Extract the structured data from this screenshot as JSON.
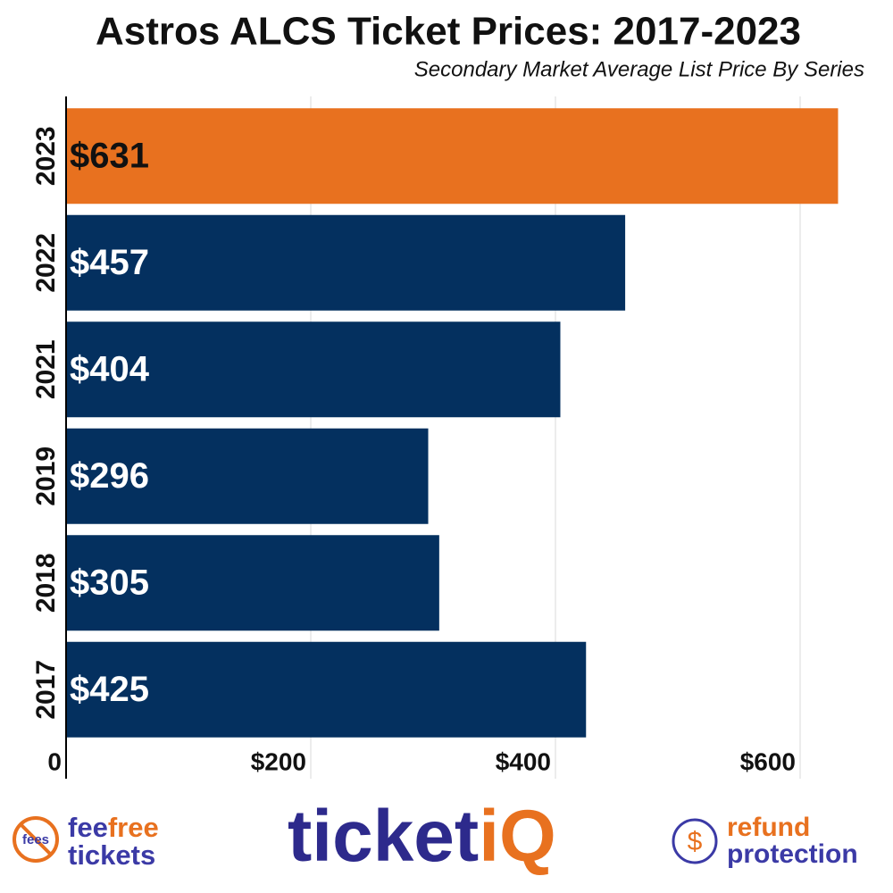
{
  "chart_data": {
    "type": "hbar",
    "title": "Astros ALCS Ticket Prices: 2017-2023",
    "subtitle": "Secondary Market Average List Price By Series",
    "categories": [
      "2023",
      "2022",
      "2021",
      "2019",
      "2018",
      "2017"
    ],
    "values": [
      631,
      457,
      404,
      296,
      305,
      425
    ],
    "value_labels": [
      "$631",
      "$457",
      "$404",
      "$296",
      "$305",
      "$425"
    ],
    "colors": [
      "#e8711f",
      "#04305f",
      "#04305f",
      "#04305f",
      "#04305f",
      "#04305f"
    ],
    "xlim": [
      0,
      650
    ],
    "xticks": [
      0,
      {
        "value": 200,
        "label": "$200"
      },
      {
        "value": 400,
        "label": "$400"
      },
      {
        "value": 600,
        "label": "$600"
      }
    ],
    "grid": true
  },
  "footer": {
    "feefree": {
      "badge": "fees",
      "fee": "fee",
      "free": "free",
      "tickets": "tickets"
    },
    "brand": {
      "ticket": "ticket",
      "iq": "iQ"
    },
    "refund": {
      "symbol": "$",
      "refund": "refund",
      "protection": "protection"
    }
  }
}
